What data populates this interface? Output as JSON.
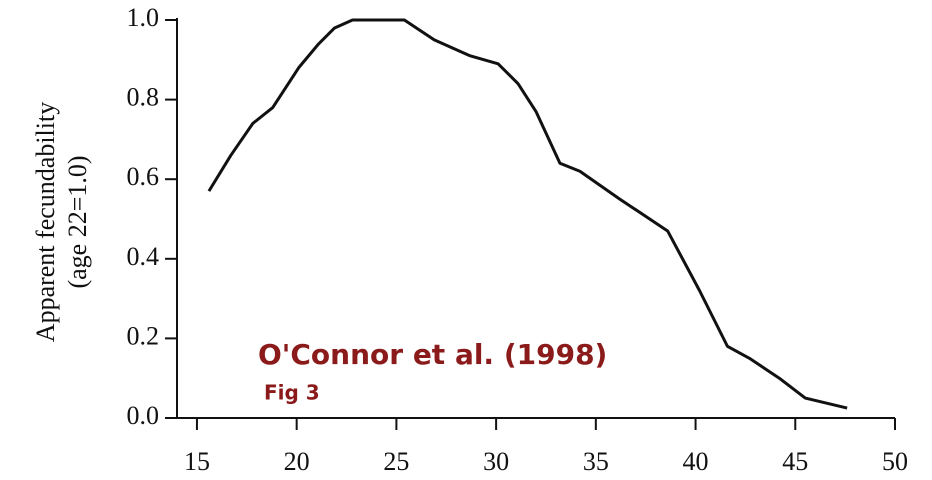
{
  "chart_data": {
    "type": "line",
    "y_label_lines": [
      "Apparent  fecundability",
      "(age 22=1.0)"
    ],
    "annotations": [
      "O'Connor et al. (1998)",
      "Fig 3"
    ],
    "x": [
      15.6,
      16.7,
      17.8,
      18.8,
      20.1,
      21.1,
      21.9,
      22.8,
      25.4,
      26.9,
      28.7,
      30.1,
      31.1,
      32.0,
      33.2,
      34.2,
      36.2,
      38.6,
      40.2,
      41.6,
      42.7,
      44.2,
      45.5,
      47.6
    ],
    "series": [
      {
        "name": null,
        "color": "#111111",
        "values": [
          0.57,
          0.66,
          0.74,
          0.78,
          0.88,
          0.94,
          0.98,
          1.0,
          1.0,
          0.95,
          0.91,
          0.89,
          0.84,
          0.77,
          0.64,
          0.62,
          0.55,
          0.47,
          0.32,
          0.18,
          0.15,
          0.1,
          0.05,
          0.025
        ]
      }
    ],
    "xlim": [
      14,
      50
    ],
    "xticks": [
      15,
      20,
      25,
      30,
      35,
      40,
      45,
      50
    ],
    "ylim": [
      0,
      1
    ],
    "yticks": [
      {
        "value": 0,
        "label": "0.0"
      },
      0.2,
      0.4,
      0.6,
      0.8,
      {
        "value": 1,
        "label": "1.0"
      }
    ],
    "grid": false
  }
}
